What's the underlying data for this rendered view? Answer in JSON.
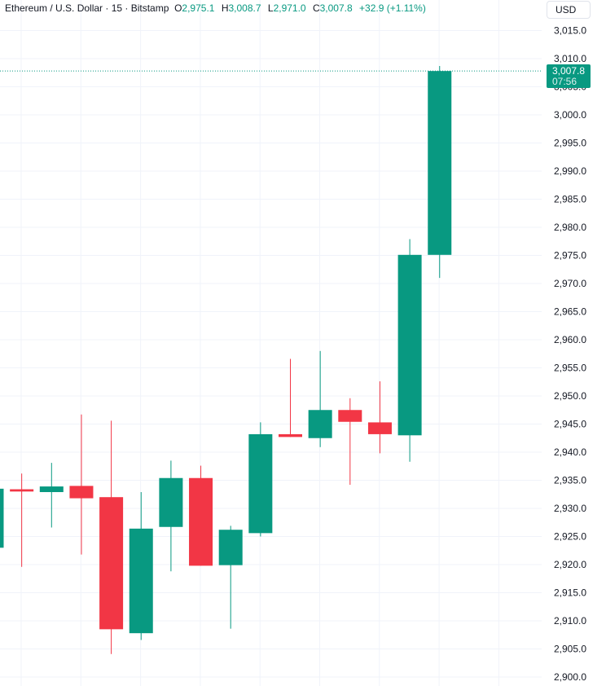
{
  "legend": {
    "symbol": "Ethereum / U.S. Dollar · 15 · Bitstamp",
    "open_label": "O",
    "open": "2,975.1",
    "high_label": "H",
    "high": "3,008.7",
    "low_label": "L",
    "low": "2,971.0",
    "close_label": "C",
    "close": "3,007.8",
    "change": "+32.9 (+1.11%)"
  },
  "currency": "USD",
  "price_tag": {
    "price": "3,007.8",
    "countdown": "07:56"
  },
  "colors": {
    "up": "#089981",
    "down": "#f23645",
    "grid": "#f0f3fa",
    "text": "#131722"
  },
  "chart_data": {
    "type": "candlestick",
    "y_axis": {
      "range": [
        2900,
        3016
      ],
      "ticks": [
        "2,900.0",
        "2,905.0",
        "2,910.0",
        "2,915.0",
        "2,920.0",
        "2,925.0",
        "2,930.0",
        "2,935.0",
        "2,940.0",
        "2,945.0",
        "2,950.0",
        "2,955.0",
        "2,960.0",
        "2,965.0",
        "2,970.0",
        "2,975.0",
        "2,980.0",
        "2,985.0",
        "2,990.0",
        "2,995.0",
        "3,000.0",
        "3,005.0",
        "3,010.0",
        "3,015.0"
      ],
      "position": "right"
    },
    "grid": true,
    "last_price_line": 3007.8,
    "candles": [
      {
        "open": 2923.0,
        "high": 2933.5,
        "low": 2923.0,
        "close": 2933.5
      },
      {
        "open": 2933.4,
        "high": 2936.2,
        "low": 2919.6,
        "close": 2933.0
      },
      {
        "open": 2932.9,
        "high": 2938.1,
        "low": 2926.6,
        "close": 2933.9
      },
      {
        "open": 2934.0,
        "high": 2946.7,
        "low": 2921.8,
        "close": 2931.8
      },
      {
        "open": 2932.0,
        "high": 2945.6,
        "low": 2904.1,
        "close": 2908.5
      },
      {
        "open": 2907.8,
        "high": 2932.9,
        "low": 2906.6,
        "close": 2926.4
      },
      {
        "open": 2926.7,
        "high": 2938.5,
        "low": 2918.8,
        "close": 2935.4
      },
      {
        "open": 2935.4,
        "high": 2937.6,
        "low": 2919.8,
        "close": 2919.8
      },
      {
        "open": 2919.9,
        "high": 2926.9,
        "low": 2908.6,
        "close": 2926.2
      },
      {
        "open": 2925.6,
        "high": 2945.3,
        "low": 2925.0,
        "close": 2943.2
      },
      {
        "open": 2943.2,
        "high": 2956.6,
        "low": 2942.7,
        "close": 2942.7
      },
      {
        "open": 2942.5,
        "high": 2958.0,
        "low": 2940.9,
        "close": 2947.5
      },
      {
        "open": 2947.5,
        "high": 2949.6,
        "low": 2934.2,
        "close": 2945.4
      },
      {
        "open": 2945.3,
        "high": 2952.6,
        "low": 2939.8,
        "close": 2943.2
      },
      {
        "open": 2943.0,
        "high": 2977.9,
        "low": 2938.3,
        "close": 2975.1
      },
      {
        "open": 2975.1,
        "high": 3008.7,
        "low": 2971.0,
        "close": 3007.8
      }
    ]
  }
}
